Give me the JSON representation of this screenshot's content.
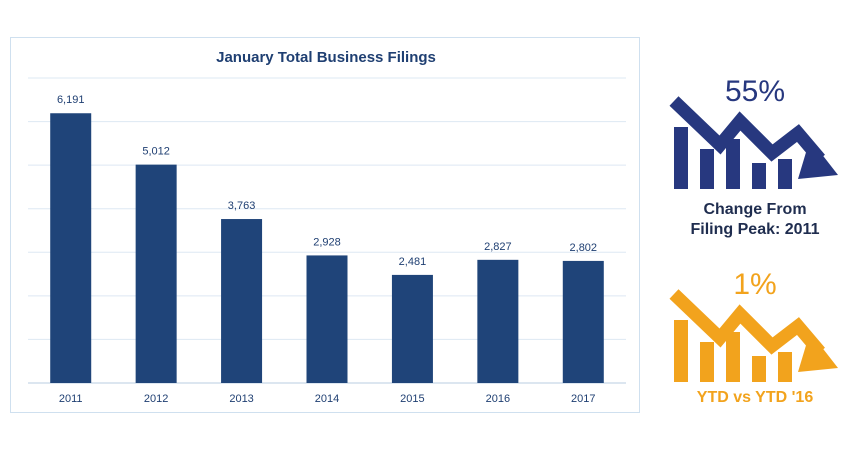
{
  "chart_data": {
    "type": "bar",
    "title": "January Total Business Filings",
    "categories": [
      "2011",
      "2012",
      "2013",
      "2014",
      "2015",
      "2016",
      "2017"
    ],
    "values": [
      6191,
      5012,
      3763,
      2928,
      2481,
      2827,
      2802
    ],
    "value_labels": [
      "6,191",
      "5,012",
      "3,763",
      "2,928",
      "2,481",
      "2,827",
      "2,802"
    ],
    "ylim": [
      0,
      7000
    ],
    "grid": true,
    "bar_color": "#1f4479"
  },
  "stats": [
    {
      "percent": "55%",
      "caption_line1": "Change From",
      "caption_line2": "Filing Peak: 2011",
      "color": "#27387f",
      "icon": "declining-bars-arrow-icon"
    },
    {
      "percent": "1%",
      "caption_line1": "YTD vs YTD '16",
      "color": "#f2a31d",
      "icon": "declining-bars-arrow-icon"
    }
  ]
}
